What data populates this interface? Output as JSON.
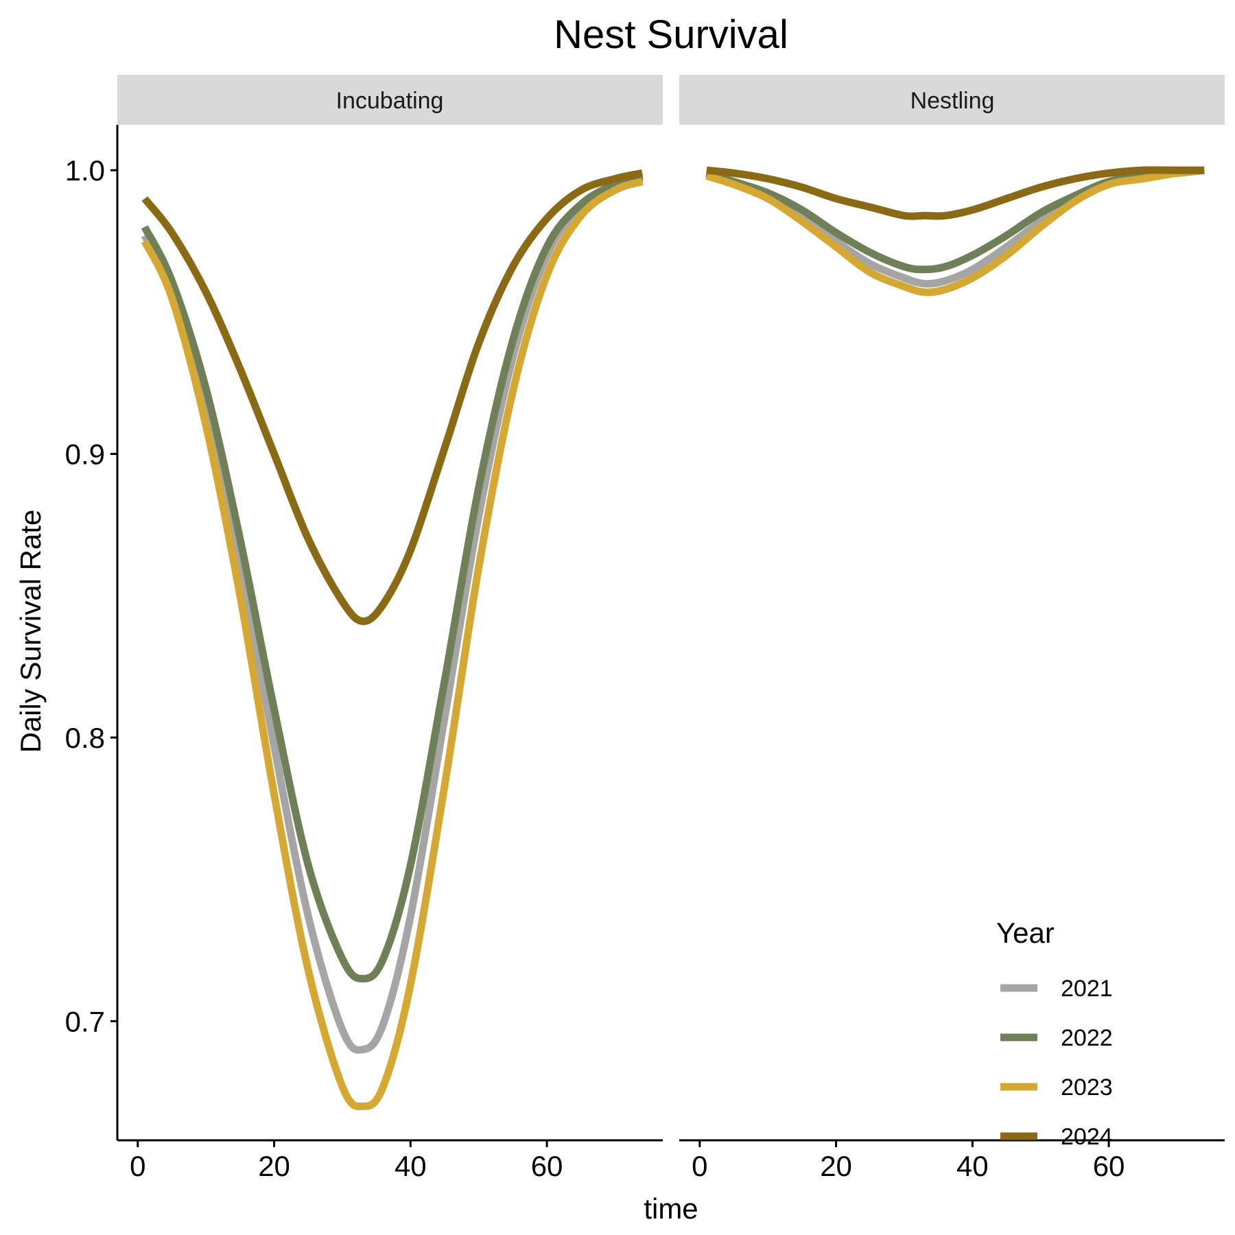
{
  "chart_data": {
    "type": "line",
    "title": "Nest Survival",
    "xlabel": "time",
    "ylabel": "Daily Survival Rate",
    "xlim": [
      -3,
      77
    ],
    "ylim": [
      0.658,
      1.016
    ],
    "x_ticks": [
      0,
      20,
      40,
      60
    ],
    "y_ticks": [
      0.7,
      0.8,
      0.9,
      1.0
    ],
    "y_tick_labels": [
      "0.7",
      "0.8",
      "0.9",
      "1.0"
    ],
    "grid": false,
    "legend": {
      "title": "Year",
      "position": "bottom-right"
    },
    "series_styles": [
      {
        "name": "2021",
        "color": "#a5a5a5"
      },
      {
        "name": "2022",
        "color": "#6f7f57"
      },
      {
        "name": "2023",
        "color": "#d4a832"
      },
      {
        "name": "2024",
        "color": "#8a6a15"
      }
    ],
    "panels": [
      {
        "label": "Incubating",
        "series": [
          {
            "name": "2021",
            "x": [
              1,
              5,
              10,
              15,
              20,
              25,
              30,
              33,
              36,
              40,
              45,
              50,
              55,
              60,
              65,
              70,
              74
            ],
            "y": [
              0.977,
              0.958,
              0.918,
              0.863,
              0.797,
              0.737,
              0.697,
              0.69,
              0.699,
              0.737,
              0.807,
              0.878,
              0.934,
              0.97,
              0.987,
              0.994,
              0.997
            ]
          },
          {
            "name": "2022",
            "x": [
              1,
              5,
              10,
              15,
              20,
              25,
              30,
              33,
              36,
              40,
              45,
              50,
              55,
              60,
              65,
              70,
              74
            ],
            "y": [
              0.98,
              0.961,
              0.923,
              0.87,
              0.81,
              0.755,
              0.722,
              0.715,
              0.722,
              0.755,
              0.82,
              0.888,
              0.94,
              0.973,
              0.988,
              0.995,
              0.998
            ]
          },
          {
            "name": "2023",
            "x": [
              1,
              5,
              10,
              15,
              20,
              25,
              30,
              33,
              36,
              40,
              45,
              50,
              55,
              60,
              65,
              70,
              74
            ],
            "y": [
              0.975,
              0.955,
              0.91,
              0.85,
              0.78,
              0.718,
              0.677,
              0.67,
              0.677,
              0.713,
              0.783,
              0.86,
              0.922,
              0.963,
              0.984,
              0.993,
              0.996
            ]
          },
          {
            "name": "2024",
            "x": [
              1,
              5,
              10,
              15,
              20,
              25,
              30,
              33,
              36,
              40,
              45,
              50,
              55,
              60,
              65,
              70,
              74
            ],
            "y": [
              0.99,
              0.978,
              0.957,
              0.93,
              0.9,
              0.87,
              0.848,
              0.841,
              0.847,
              0.866,
              0.902,
              0.939,
              0.966,
              0.983,
              0.993,
              0.997,
              0.999
            ]
          }
        ]
      },
      {
        "label": "Nestling",
        "series": [
          {
            "name": "2021",
            "x": [
              1,
              5,
              10,
              15,
              20,
              25,
              30,
              33,
              36,
              40,
              45,
              50,
              55,
              60,
              65,
              70,
              74
            ],
            "y": [
              0.998,
              0.996,
              0.991,
              0.984,
              0.975,
              0.967,
              0.962,
              0.96,
              0.961,
              0.965,
              0.973,
              0.982,
              0.99,
              0.995,
              0.998,
              0.999,
              1.0
            ]
          },
          {
            "name": "2022",
            "x": [
              1,
              5,
              10,
              15,
              20,
              25,
              30,
              33,
              36,
              40,
              45,
              50,
              55,
              60,
              65,
              70,
              74
            ],
            "y": [
              0.999,
              0.996,
              0.992,
              0.986,
              0.978,
              0.971,
              0.966,
              0.965,
              0.966,
              0.97,
              0.977,
              0.985,
              0.991,
              0.996,
              0.998,
              0.999,
              1.0
            ]
          },
          {
            "name": "2023",
            "x": [
              1,
              5,
              10,
              15,
              20,
              25,
              30,
              33,
              36,
              40,
              45,
              50,
              55,
              60,
              65,
              70,
              74
            ],
            "y": [
              0.998,
              0.995,
              0.99,
              0.982,
              0.973,
              0.964,
              0.959,
              0.957,
              0.958,
              0.962,
              0.97,
              0.98,
              0.989,
              0.995,
              0.997,
              0.999,
              1.0
            ]
          },
          {
            "name": "2024",
            "x": [
              1,
              5,
              10,
              15,
              20,
              25,
              30,
              33,
              36,
              40,
              45,
              50,
              55,
              60,
              65,
              70,
              74
            ],
            "y": [
              1.0,
              0.999,
              0.997,
              0.994,
              0.99,
              0.987,
              0.984,
              0.984,
              0.984,
              0.986,
              0.99,
              0.994,
              0.997,
              0.999,
              1.0,
              1.0,
              1.0
            ]
          }
        ]
      }
    ]
  }
}
